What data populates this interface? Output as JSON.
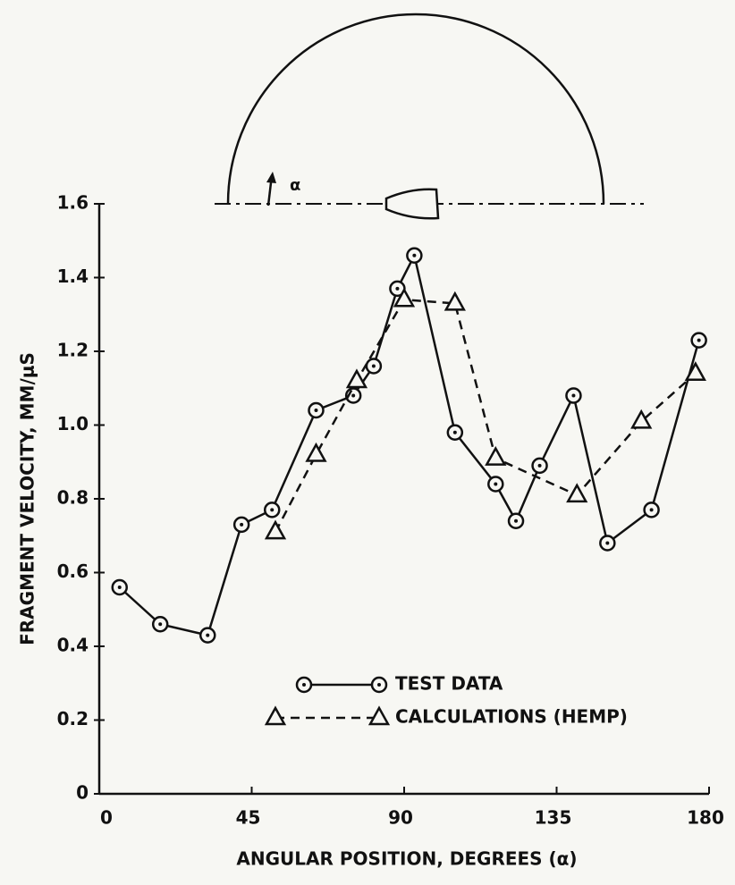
{
  "chart_data": {
    "type": "line",
    "xlabel": "ANGULAR POSITION, DEGREES (α)",
    "ylabel": "FRAGMENT VELOCITY, MM/μS",
    "diagram_label": "α",
    "xlim": [
      0,
      180
    ],
    "xticks": [
      0,
      45,
      90,
      135,
      180
    ],
    "ylim": [
      0,
      1.6
    ],
    "yticks": [
      0,
      0.2,
      0.4,
      0.6,
      0.8,
      {
        "value": 1,
        "label": "1.0"
      },
      1.2,
      1.4,
      1.6
    ],
    "series": [
      {
        "name": "TEST DATA",
        "color": "#111111",
        "marker": "circle",
        "line_style": "solid",
        "x": [
          6,
          18,
          32,
          42,
          51,
          64,
          75,
          81,
          88,
          93,
          105,
          117,
          123,
          130,
          140,
          150,
          163,
          177
        ],
        "values": [
          0.56,
          0.46,
          0.43,
          0.73,
          0.77,
          1.04,
          1.08,
          1.16,
          1.37,
          1.46,
          0.98,
          0.84,
          0.74,
          0.89,
          1.08,
          0.68,
          0.77,
          1.23
        ]
      },
      {
        "name": "CALCULATIONS (HEMP)",
        "color": "#111111",
        "marker": "triangle",
        "line_style": "dashed",
        "x": [
          52,
          64,
          76,
          90,
          105,
          117,
          141,
          160,
          176
        ],
        "values": [
          0.71,
          0.92,
          1.12,
          1.34,
          1.33,
          0.91,
          0.81,
          1.01,
          1.14
        ]
      }
    ]
  }
}
